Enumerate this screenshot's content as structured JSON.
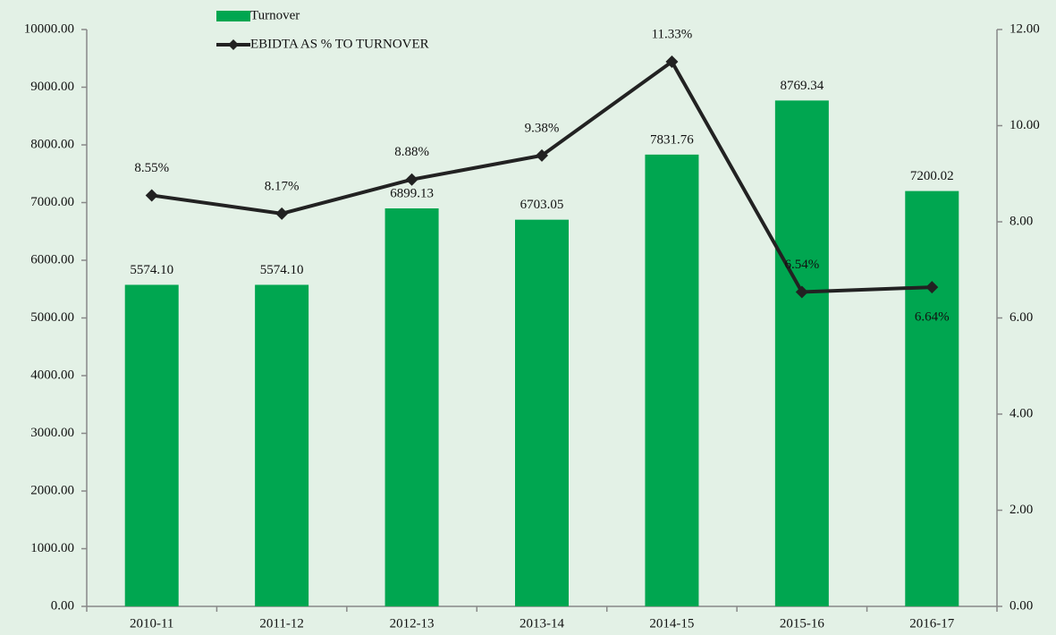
{
  "chart_data": {
    "type": "bar_line",
    "categories": [
      "2010-11",
      "2011-12",
      "2012-13",
      "2013-14",
      "2014-15",
      "2015-16",
      "2016-17"
    ],
    "series": [
      {
        "name": "Turnover",
        "type": "bar",
        "color": "#00a650",
        "values": [
          5574.1,
          5574.1,
          6899.13,
          6703.05,
          7831.76,
          8769.34,
          7200.02
        ],
        "value_labels": [
          "5574.10",
          "5574.10",
          "6899.13",
          "6703.05",
          "7831.76",
          "8769.34",
          "7200.02"
        ]
      },
      {
        "name": "EBIDTA AS % TO TURNOVER",
        "type": "line",
        "axis": "y2",
        "color": "#222222",
        "values": [
          8.55,
          8.17,
          8.88,
          9.38,
          11.33,
          6.54,
          6.64
        ],
        "value_labels": [
          "8.55%",
          "8.17%",
          "8.88%",
          "9.38%",
          "11.33%",
          "6.54%",
          "6.64%"
        ]
      }
    ],
    "ylim": [
      0,
      10000
    ],
    "yticks": [
      {
        "value": 0,
        "label": "0.00"
      },
      {
        "value": 1000,
        "label": "1000.00"
      },
      {
        "value": 2000,
        "label": "2000.00"
      },
      {
        "value": 3000,
        "label": "3000.00"
      },
      {
        "value": 4000,
        "label": "4000.00"
      },
      {
        "value": 5000,
        "label": "5000.00"
      },
      {
        "value": 6000,
        "label": "6000.00"
      },
      {
        "value": 7000,
        "label": "7000.00"
      },
      {
        "value": 8000,
        "label": "8000.00"
      },
      {
        "value": 9000,
        "label": "9000.00"
      },
      {
        "value": 10000,
        "label": "10000.00"
      }
    ],
    "y2lim": [
      0,
      12
    ],
    "y2ticks": [
      {
        "value": 0,
        "label": "0.00"
      },
      {
        "value": 2,
        "label": "2.00"
      },
      {
        "value": 4,
        "label": "4.00"
      },
      {
        "value": 6,
        "label": "6.00"
      },
      {
        "value": 8,
        "label": "8.00"
      },
      {
        "value": 10,
        "label": "10.00"
      },
      {
        "value": 12,
        "label": "12.00"
      }
    ],
    "grid": false,
    "legend": "top"
  }
}
